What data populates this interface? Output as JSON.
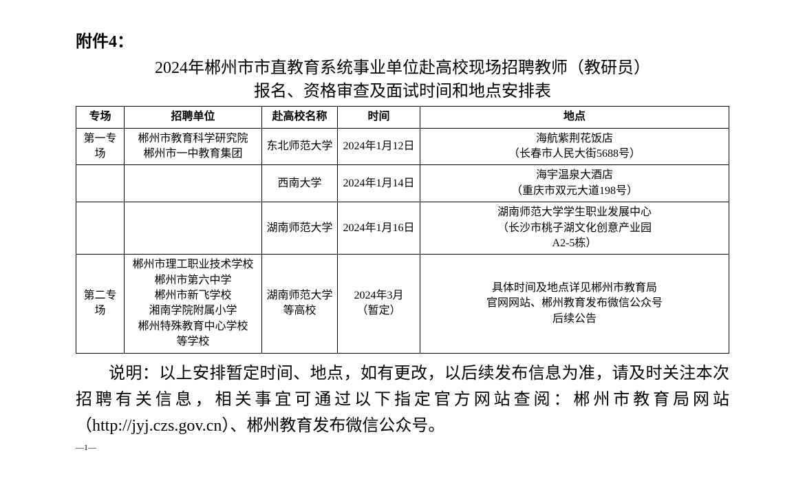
{
  "attachment_label": "附件4：",
  "title_line1": "2024年郴州市市直教育系统事业单位赴高校现场招聘教师（教研员）",
  "title_line2": "报名、资格审查及面试时间和地点安排表",
  "table": {
    "headers": {
      "session": "专场",
      "unit": "招聘单位",
      "school": "赴高校名称",
      "time": "时间",
      "location": "地点"
    },
    "rows": [
      {
        "session": "第一专场",
        "unit": "郴州市教育科学研究院\n郴州市一中教育集团",
        "school": "东北师范大学",
        "time": "2024年1月12日",
        "location": "海航紫荆花饭店\n（长春市人民大街5688号）"
      },
      {
        "session": "",
        "unit": "",
        "school": "西南大学",
        "time": "2024年1月14日",
        "location": "海宇温泉大酒店\n（重庆市双元大道198号）"
      },
      {
        "session": "",
        "unit": "",
        "school": "湖南师范大学",
        "time": "2024年1月16日",
        "location": "湖南师范大学学生职业发展中心\n（长沙市桃子湖文化创意产业园\nA2-5栋）"
      },
      {
        "session": "第二专场",
        "unit": "郴州市理工职业技术学校\n郴州市第六中学\n郴州市新飞学校\n湘南学院附属小学\n郴州特殊教育中心学校\n等学校",
        "school": "湖南师范大学\n等高校",
        "time": "2024年3月\n（暂定）",
        "location": "具体时间及地点详见郴州市教育局\n官网网站、郴州教育发布微信公众号\n后续公告"
      }
    ]
  },
  "explanation": "说明：以上安排暂定时间、地点，如有更改，以后续发布信息为准，请及时关注本次招聘有关信息，相关事宜可通过以下指定官方网站查阅：郴州市教育局网站（http://jyj.czs.gov.cn）、郴州教育发布微信公众号。",
  "page_number": "—1—"
}
